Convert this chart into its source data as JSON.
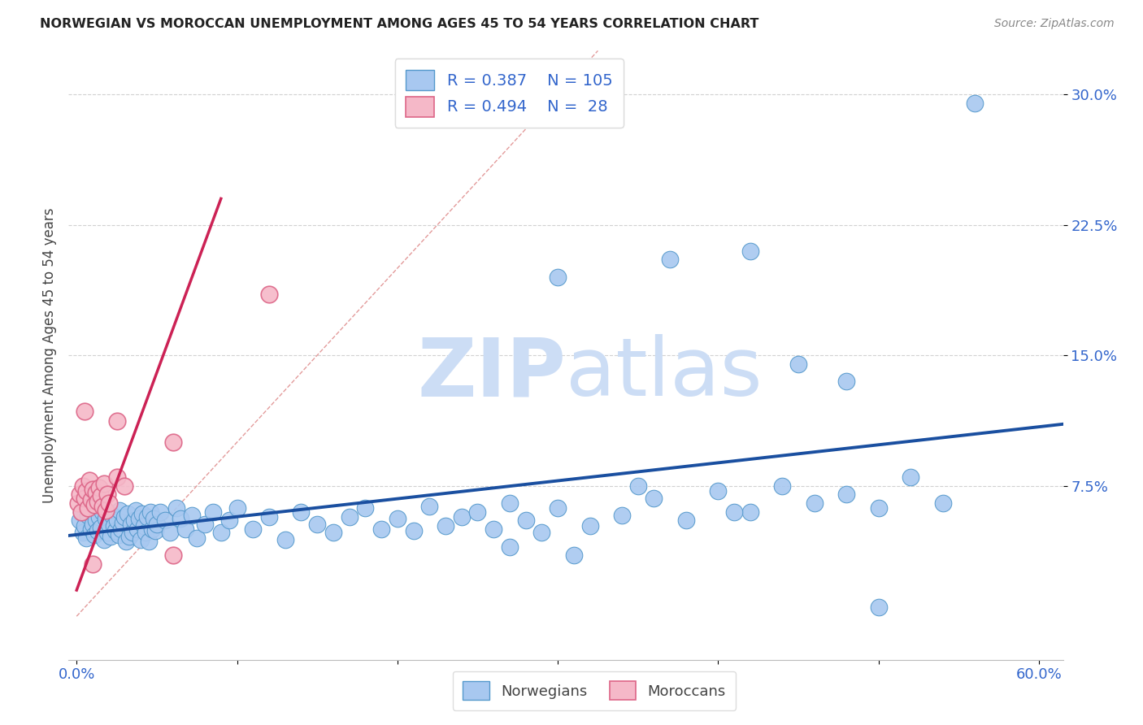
{
  "title": "NORWEGIAN VS MOROCCAN UNEMPLOYMENT AMONG AGES 45 TO 54 YEARS CORRELATION CHART",
  "source": "Source: ZipAtlas.com",
  "ylabel": "Unemployment Among Ages 45 to 54 years",
  "xlim": [
    -0.005,
    0.615
  ],
  "ylim": [
    -0.025,
    0.325
  ],
  "xticks": [
    0.0,
    0.1,
    0.2,
    0.3,
    0.4,
    0.5,
    0.6
  ],
  "xticklabels": [
    "0.0%",
    "",
    "",
    "",
    "",
    "",
    "60.0%"
  ],
  "yticks": [
    0.075,
    0.15,
    0.225,
    0.3
  ],
  "yticklabels": [
    "7.5%",
    "15.0%",
    "22.5%",
    "30.0%"
  ],
  "norwegian_color": "#a8c8f0",
  "norwegian_edge": "#5599cc",
  "moroccan_color": "#f5b8c8",
  "moroccan_edge": "#dd6688",
  "regression_norwegian_color": "#1a4fa0",
  "regression_moroccan_color": "#cc2255",
  "diagonal_color": "#e09090",
  "R_norwegian": 0.387,
  "N_norwegian": 105,
  "R_moroccan": 0.494,
  "N_moroccan": 28,
  "watermark_color": "#ccddf5",
  "nor_x": [
    0.002,
    0.003,
    0.004,
    0.005,
    0.006,
    0.007,
    0.008,
    0.009,
    0.01,
    0.011,
    0.012,
    0.013,
    0.014,
    0.015,
    0.016,
    0.017,
    0.018,
    0.019,
    0.02,
    0.021,
    0.022,
    0.023,
    0.024,
    0.025,
    0.026,
    0.027,
    0.028,
    0.029,
    0.03,
    0.031,
    0.032,
    0.033,
    0.034,
    0.035,
    0.036,
    0.037,
    0.038,
    0.039,
    0.04,
    0.041,
    0.042,
    0.043,
    0.044,
    0.045,
    0.046,
    0.047,
    0.048,
    0.049,
    0.05,
    0.052,
    0.055,
    0.058,
    0.062,
    0.065,
    0.068,
    0.072,
    0.075,
    0.08,
    0.085,
    0.09,
    0.095,
    0.1,
    0.11,
    0.12,
    0.13,
    0.14,
    0.15,
    0.16,
    0.17,
    0.18,
    0.19,
    0.2,
    0.21,
    0.22,
    0.23,
    0.24,
    0.25,
    0.26,
    0.27,
    0.28,
    0.29,
    0.3,
    0.32,
    0.34,
    0.36,
    0.38,
    0.4,
    0.42,
    0.44,
    0.46,
    0.48,
    0.5,
    0.52,
    0.54,
    0.3,
    0.37,
    0.42,
    0.45,
    0.56,
    0.48,
    0.35,
    0.27,
    0.31,
    0.41,
    0.5
  ],
  "nor_y": [
    0.055,
    0.06,
    0.048,
    0.052,
    0.045,
    0.058,
    0.062,
    0.05,
    0.053,
    0.047,
    0.055,
    0.049,
    0.057,
    0.051,
    0.06,
    0.044,
    0.056,
    0.048,
    0.053,
    0.046,
    0.058,
    0.052,
    0.049,
    0.055,
    0.047,
    0.061,
    0.05,
    0.054,
    0.057,
    0.043,
    0.059,
    0.046,
    0.053,
    0.048,
    0.055,
    0.061,
    0.05,
    0.056,
    0.044,
    0.059,
    0.052,
    0.048,
    0.057,
    0.043,
    0.06,
    0.05,
    0.056,
    0.049,
    0.053,
    0.06,
    0.055,
    0.048,
    0.062,
    0.056,
    0.05,
    0.058,
    0.045,
    0.053,
    0.06,
    0.048,
    0.055,
    0.062,
    0.05,
    0.057,
    0.044,
    0.06,
    0.053,
    0.048,
    0.057,
    0.062,
    0.05,
    0.056,
    0.049,
    0.063,
    0.052,
    0.057,
    0.06,
    0.05,
    0.065,
    0.055,
    0.048,
    0.062,
    0.052,
    0.058,
    0.068,
    0.055,
    0.072,
    0.06,
    0.075,
    0.065,
    0.07,
    0.062,
    0.08,
    0.065,
    0.195,
    0.205,
    0.21,
    0.145,
    0.295,
    0.135,
    0.075,
    0.04,
    0.035,
    0.06,
    0.005
  ],
  "mor_x": [
    0.001,
    0.002,
    0.003,
    0.004,
    0.005,
    0.006,
    0.007,
    0.008,
    0.009,
    0.01,
    0.011,
    0.012,
    0.013,
    0.014,
    0.015,
    0.016,
    0.017,
    0.018,
    0.019,
    0.02,
    0.025,
    0.03,
    0.06,
    0.12,
    0.06,
    0.025,
    0.005,
    0.01
  ],
  "mor_y": [
    0.065,
    0.07,
    0.06,
    0.075,
    0.068,
    0.072,
    0.062,
    0.078,
    0.067,
    0.073,
    0.064,
    0.071,
    0.066,
    0.074,
    0.069,
    0.063,
    0.076,
    0.061,
    0.07,
    0.065,
    0.08,
    0.075,
    0.035,
    0.185,
    0.1,
    0.112,
    0.118,
    0.03
  ]
}
